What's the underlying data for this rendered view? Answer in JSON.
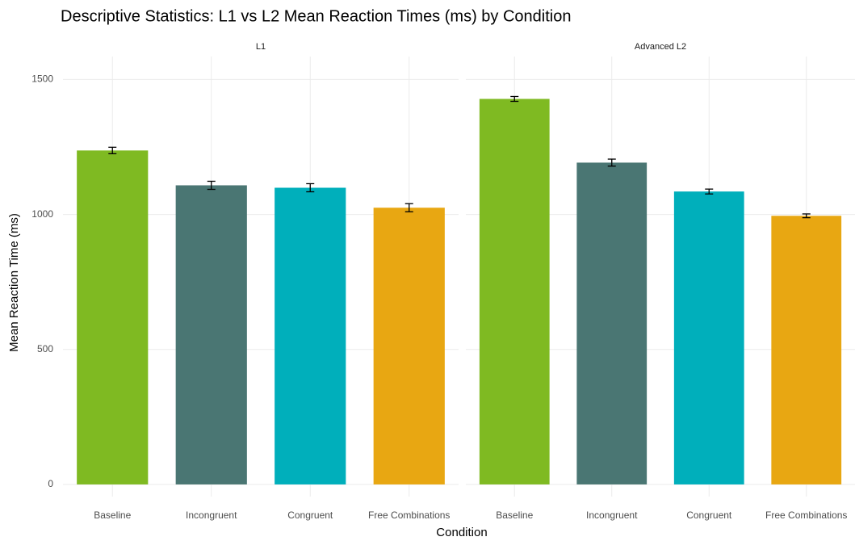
{
  "chart_data": {
    "type": "bar",
    "title": "Descriptive Statistics: L1 vs L2 Mean Reaction Times (ms) by Condition",
    "x_label": "Condition",
    "y_label": "Mean Reaction Time (ms)",
    "categories": [
      "Baseline",
      "Incongruent",
      "Congruent",
      "Free Combinations"
    ],
    "colors": [
      "#7fba22",
      "#4a7673",
      "#00afbb",
      "#e8a712"
    ],
    "facets": [
      {
        "title": "L1",
        "values": [
          1237,
          1108,
          1099,
          1025
        ],
        "errors": [
          12,
          15,
          15,
          15
        ]
      },
      {
        "title": "Advanced L2",
        "values": [
          1428,
          1192,
          1085,
          995
        ],
        "errors": [
          9,
          13,
          9,
          7
        ]
      }
    ],
    "ylim": [
      -45,
      1585
    ],
    "yticks": [
      0,
      500,
      1000,
      1500
    ],
    "grid": true,
    "error_bars": true
  }
}
